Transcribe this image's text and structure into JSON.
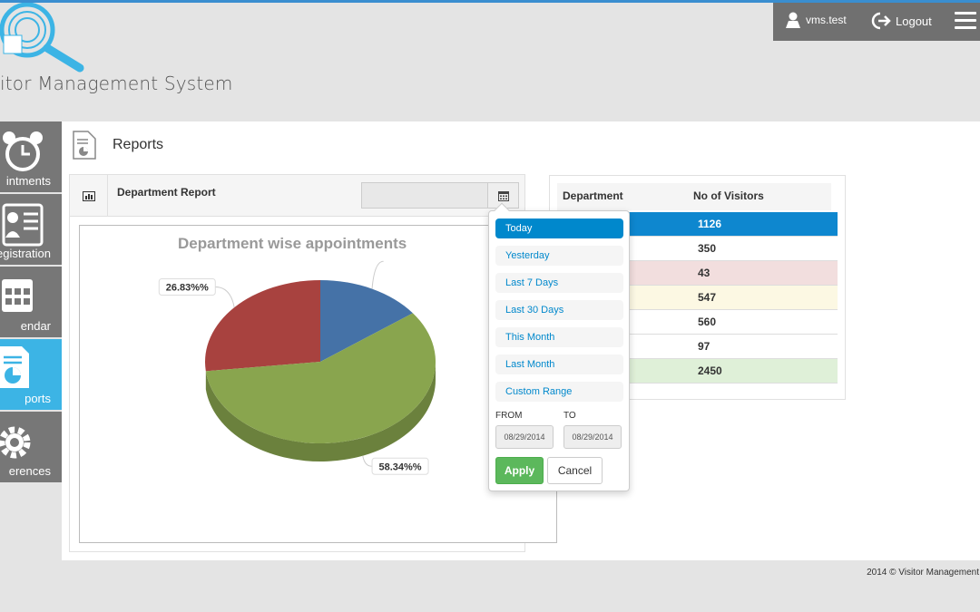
{
  "header": {
    "logo_text": "itor Management System",
    "username": "vms.test",
    "logout_label": "Logout"
  },
  "sidebar": {
    "items": [
      {
        "label": "intments",
        "icon": "alarm-clock-icon",
        "active": false
      },
      {
        "label": "egistration",
        "icon": "id-card-icon",
        "active": false
      },
      {
        "label": "endar",
        "icon": "calendar-icon",
        "active": false
      },
      {
        "label": "ports",
        "icon": "report-icon",
        "active": true
      },
      {
        "label": "erences",
        "icon": "gear-icon",
        "active": false
      }
    ]
  },
  "page": {
    "title": "Reports"
  },
  "report_panel": {
    "title": "Department Report",
    "date_value": ""
  },
  "date_picker": {
    "ranges": [
      "Today",
      "Yesterday",
      "Last 7 Days",
      "Last 30 Days",
      "This Month",
      "Last Month",
      "Custom Range"
    ],
    "active_range": "Today",
    "from_label": "FROM",
    "to_label": "TO",
    "from_value": "08/29/2014",
    "to_value": "08/29/2014",
    "apply_label": "Apply",
    "cancel_label": "Cancel"
  },
  "chart_data": {
    "type": "pie",
    "title": "Department wise appointments",
    "slices": [
      {
        "label": "26.83%%",
        "value": 26.83,
        "color": "#a8423f"
      },
      {
        "label": "",
        "value": 14.83,
        "color": "#4572a7"
      },
      {
        "label": "58.34%%",
        "value": 58.34,
        "color": "#89a54e"
      }
    ]
  },
  "visitors_table": {
    "headers": [
      "Department",
      "No of Visitors"
    ],
    "rows": [
      {
        "department": "",
        "visitors": "1126"
      },
      {
        "department": "",
        "visitors": "350"
      },
      {
        "department": "",
        "visitors": "43"
      },
      {
        "department": "",
        "visitors": "547"
      },
      {
        "department": "",
        "visitors": "560"
      },
      {
        "department": "",
        "visitors": "97"
      },
      {
        "department": "",
        "visitors": "2450"
      }
    ]
  },
  "footer": {
    "text": "2014 © Visitor Management"
  }
}
